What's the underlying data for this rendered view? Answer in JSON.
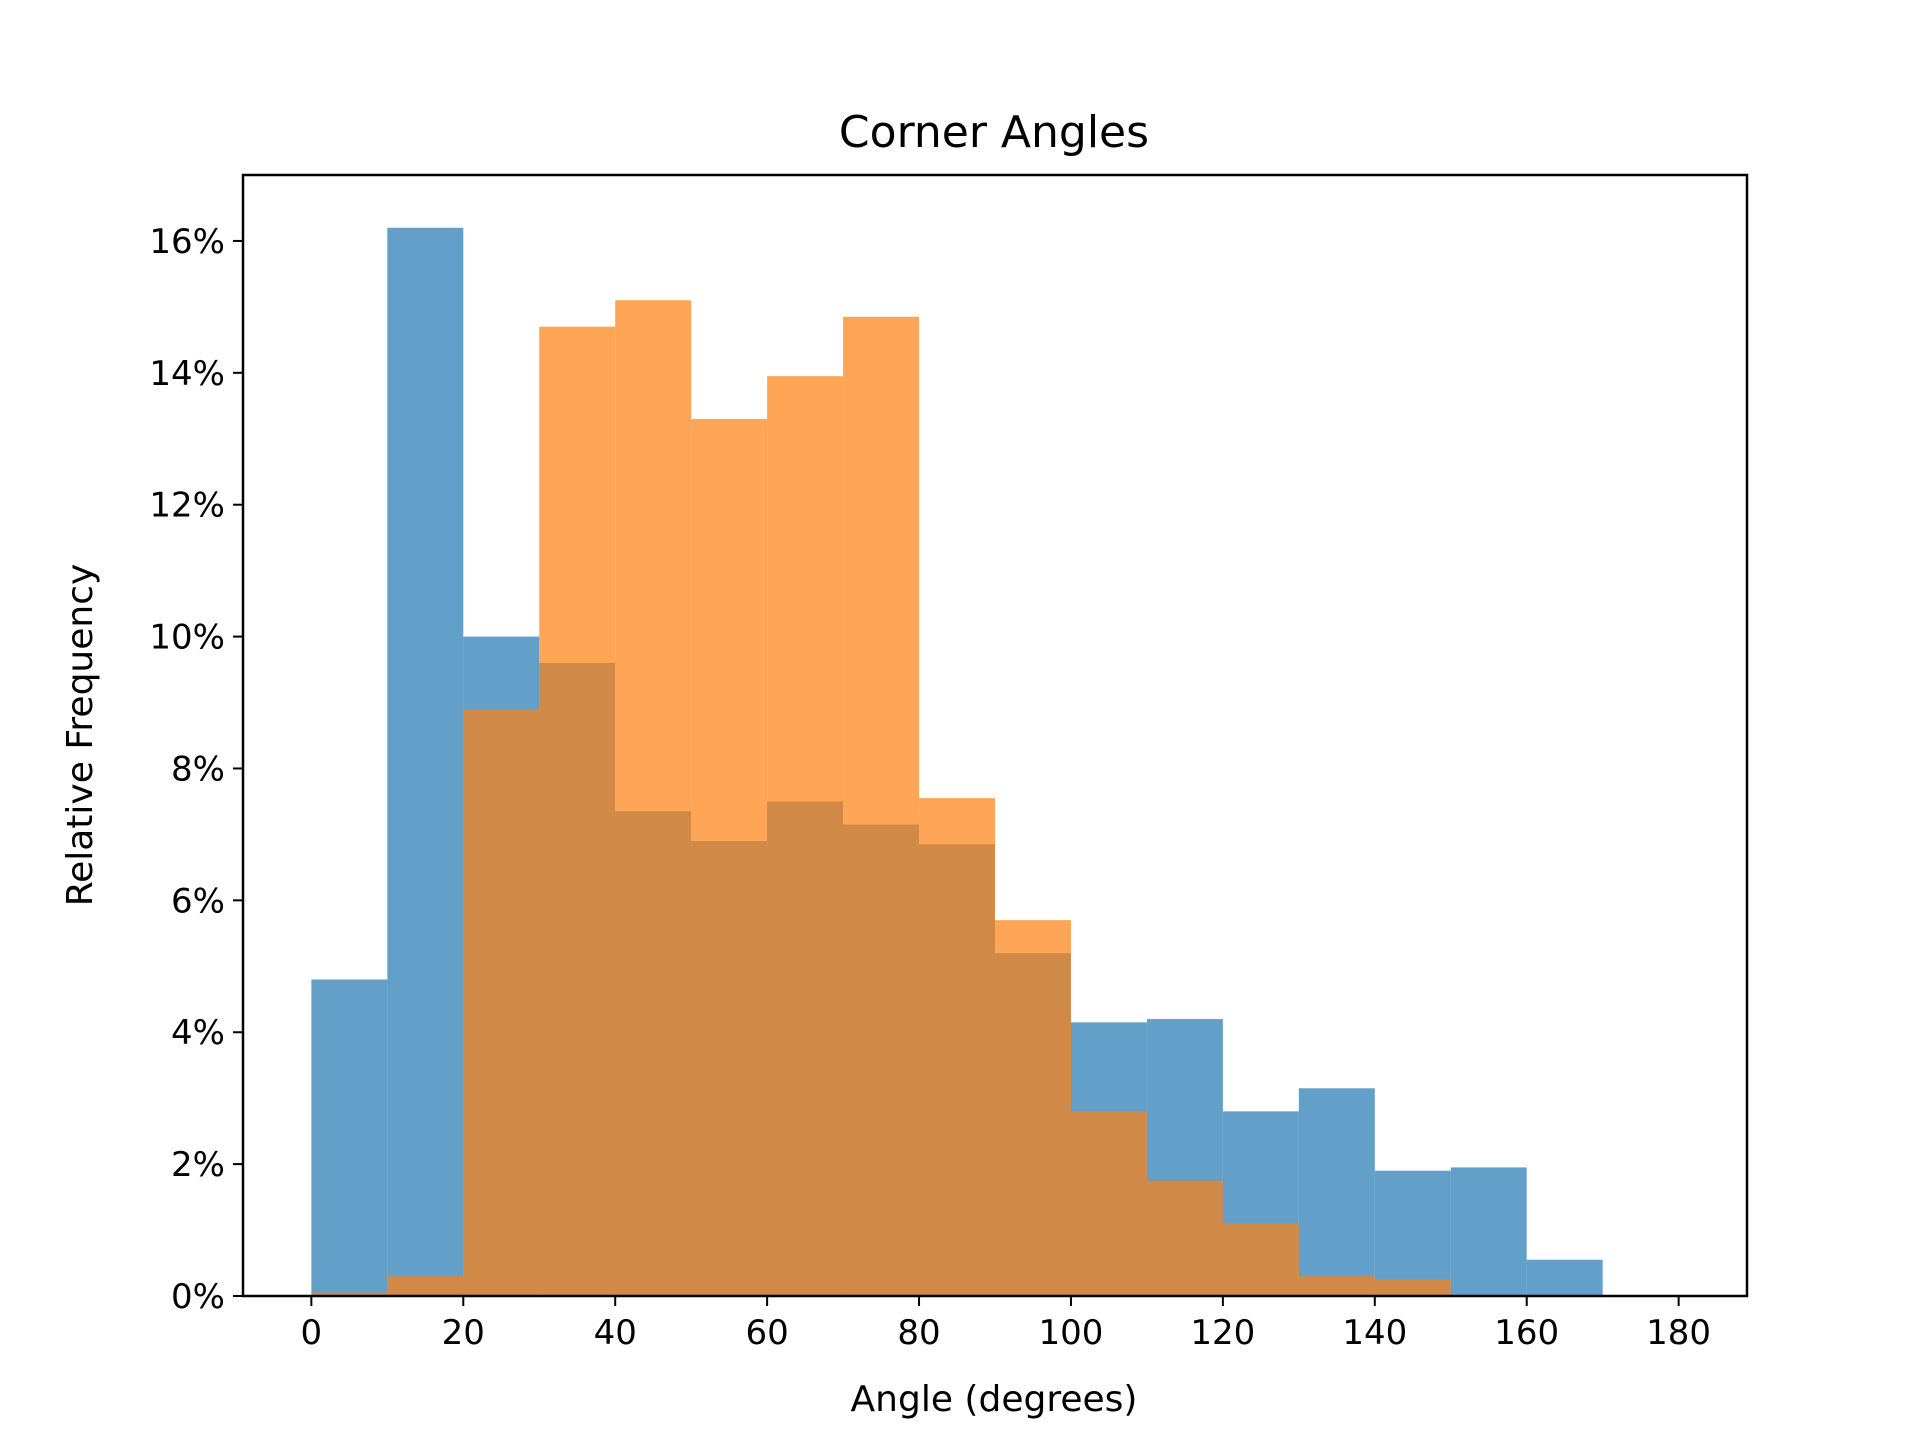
{
  "chart_data": {
    "type": "histogram",
    "title": "Corner Angles",
    "xlabel": "Angle (degrees)",
    "ylabel": "Relative Frequency",
    "xlim": [
      -9,
      189
    ],
    "ylim": [
      0,
      17
    ],
    "xticks": [
      0,
      20,
      40,
      60,
      80,
      100,
      120,
      140,
      160,
      180
    ],
    "xtick_labels": [
      "0",
      "20",
      "40",
      "60",
      "80",
      "100",
      "120",
      "140",
      "160",
      "180"
    ],
    "yticks": [
      0,
      2,
      4,
      6,
      8,
      10,
      12,
      14,
      16
    ],
    "ytick_labels": [
      "0%",
      "2%",
      "4%",
      "6%",
      "8%",
      "10%",
      "12%",
      "14%",
      "16%"
    ],
    "bin_edges": [
      0,
      10,
      20,
      30,
      40,
      50,
      60,
      70,
      80,
      90,
      100,
      110,
      120,
      130,
      140,
      150,
      160,
      170,
      180
    ],
    "grid": false,
    "legend": false,
    "series": [
      {
        "color": "#1f77b4",
        "opacity": 0.7,
        "values": [
          4.8,
          16.2,
          10.0,
          9.6,
          7.35,
          6.9,
          7.5,
          7.15,
          6.85,
          5.2,
          4.15,
          4.2,
          2.8,
          3.15,
          1.9,
          1.95,
          0.55,
          0
        ]
      },
      {
        "color": "#ff7f0e",
        "opacity": 0.7,
        "values": [
          0.05,
          0.3,
          8.9,
          14.7,
          15.1,
          13.3,
          13.95,
          14.85,
          7.55,
          5.7,
          2.8,
          1.75,
          1.1,
          0.3,
          0.25,
          0,
          0,
          0
        ]
      }
    ]
  }
}
